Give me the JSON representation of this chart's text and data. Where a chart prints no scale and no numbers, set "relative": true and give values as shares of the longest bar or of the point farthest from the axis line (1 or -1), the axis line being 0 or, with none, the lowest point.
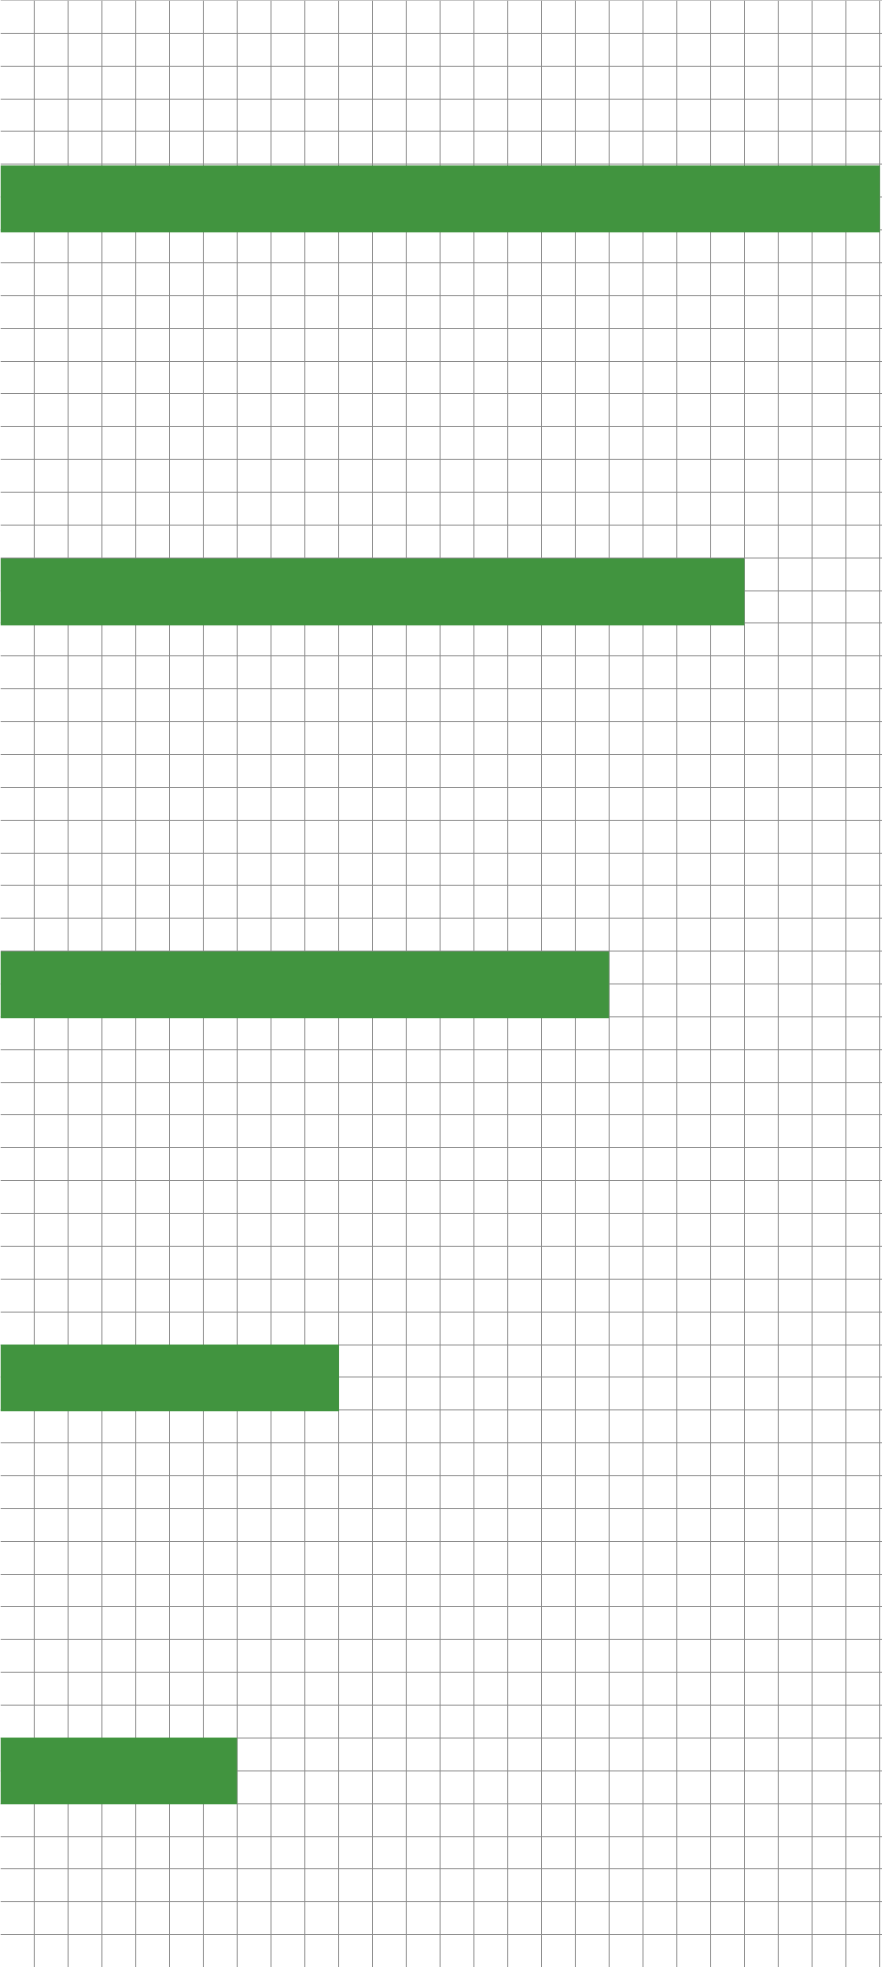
{
  "chart_data": {
    "type": "bar",
    "orientation": "horizontal",
    "relative": true,
    "grid": true,
    "tick_labels": false,
    "categories": [
      null,
      null,
      null,
      null,
      null
    ],
    "values": [
      1,
      0.846,
      0.692,
      0.385,
      0.269
    ],
    "color": "#41943f"
  }
}
